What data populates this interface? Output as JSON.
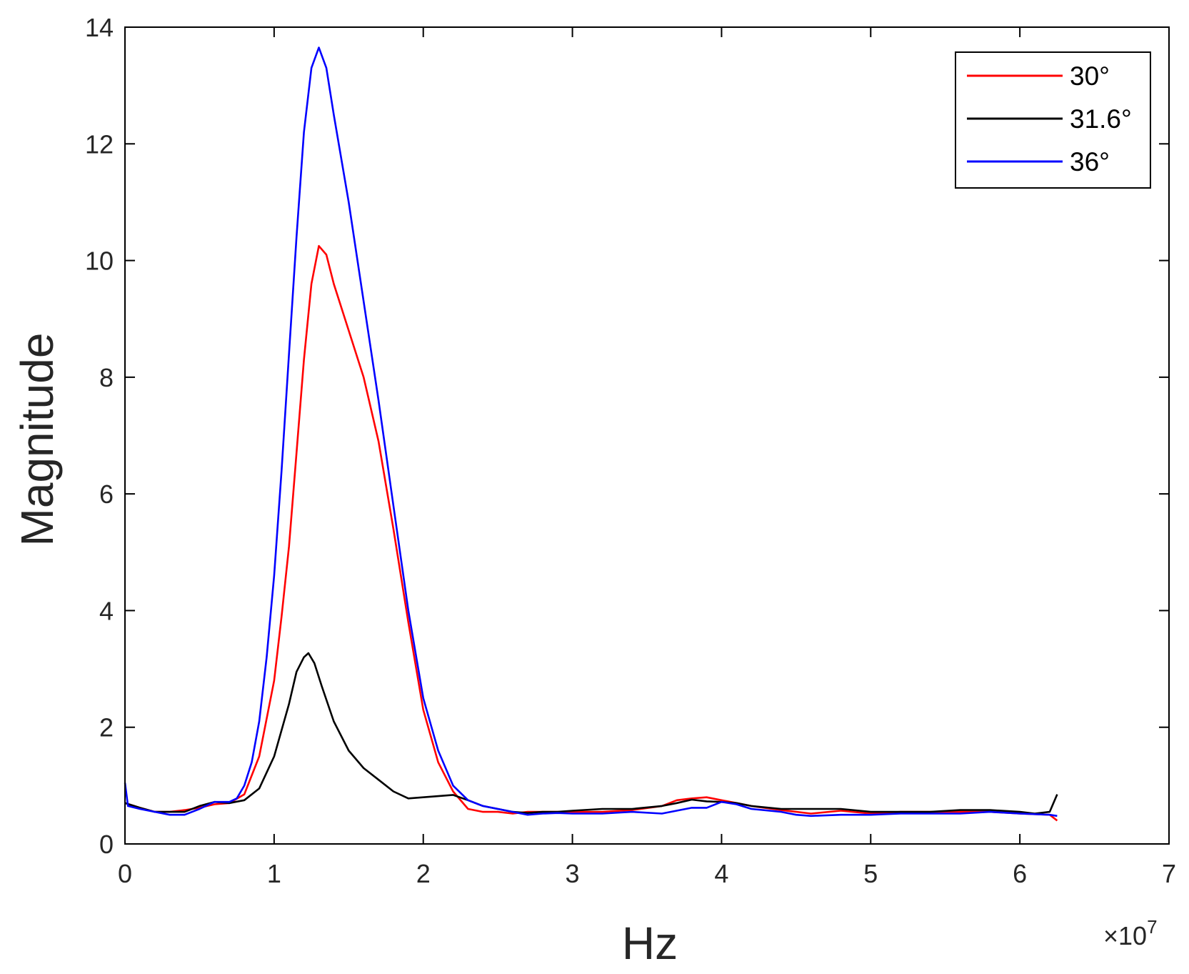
{
  "chart_data": {
    "type": "line",
    "xlabel": "Hz",
    "ylabel": "Magnitude",
    "x_exponent_label": "×10",
    "x_exponent_power": "7",
    "xlim": [
      0,
      7
    ],
    "ylim": [
      0,
      14
    ],
    "x_ticks": [
      "0",
      "1",
      "2",
      "3",
      "4",
      "5",
      "6",
      "7"
    ],
    "y_ticks": [
      "0",
      "2",
      "4",
      "6",
      "8",
      "10",
      "12",
      "14"
    ],
    "grid": false,
    "legend_position": "top-right",
    "colors": {
      "axis": "#262626",
      "box": "#000000"
    },
    "series": [
      {
        "name": "30°",
        "color": "#ff0000",
        "points": [
          [
            0,
            0.7
          ],
          [
            0.1,
            0.62
          ],
          [
            0.2,
            0.55
          ],
          [
            0.3,
            0.55
          ],
          [
            0.4,
            0.58
          ],
          [
            0.5,
            0.62
          ],
          [
            0.6,
            0.68
          ],
          [
            0.7,
            0.7
          ],
          [
            0.8,
            0.85
          ],
          [
            0.9,
            1.5
          ],
          [
            1.0,
            2.8
          ],
          [
            1.05,
            3.9
          ],
          [
            1.1,
            5.1
          ],
          [
            1.15,
            6.7
          ],
          [
            1.2,
            8.3
          ],
          [
            1.25,
            9.6
          ],
          [
            1.3,
            10.25
          ],
          [
            1.35,
            10.1
          ],
          [
            1.4,
            9.6
          ],
          [
            1.5,
            8.8
          ],
          [
            1.6,
            8.0
          ],
          [
            1.7,
            6.9
          ],
          [
            1.8,
            5.4
          ],
          [
            1.9,
            3.8
          ],
          [
            2.0,
            2.3
          ],
          [
            2.1,
            1.4
          ],
          [
            2.2,
            0.9
          ],
          [
            2.3,
            0.6
          ],
          [
            2.4,
            0.55
          ],
          [
            2.5,
            0.55
          ],
          [
            2.6,
            0.52
          ],
          [
            2.7,
            0.55
          ],
          [
            2.8,
            0.55
          ],
          [
            2.9,
            0.55
          ],
          [
            3.0,
            0.55
          ],
          [
            3.2,
            0.55
          ],
          [
            3.4,
            0.58
          ],
          [
            3.6,
            0.65
          ],
          [
            3.7,
            0.75
          ],
          [
            3.8,
            0.78
          ],
          [
            3.9,
            0.8
          ],
          [
            4.0,
            0.75
          ],
          [
            4.1,
            0.7
          ],
          [
            4.2,
            0.65
          ],
          [
            4.4,
            0.58
          ],
          [
            4.6,
            0.52
          ],
          [
            4.8,
            0.57
          ],
          [
            5.0,
            0.52
          ],
          [
            5.2,
            0.55
          ],
          [
            5.4,
            0.55
          ],
          [
            5.6,
            0.55
          ],
          [
            5.8,
            0.55
          ],
          [
            6.0,
            0.52
          ],
          [
            6.2,
            0.5
          ],
          [
            6.25,
            0.4
          ]
        ]
      },
      {
        "name": "31.6°",
        "color": "#000000",
        "points": [
          [
            0,
            0.7
          ],
          [
            0.1,
            0.62
          ],
          [
            0.2,
            0.55
          ],
          [
            0.3,
            0.55
          ],
          [
            0.4,
            0.55
          ],
          [
            0.5,
            0.65
          ],
          [
            0.6,
            0.72
          ],
          [
            0.7,
            0.7
          ],
          [
            0.8,
            0.75
          ],
          [
            0.9,
            0.95
          ],
          [
            1.0,
            1.5
          ],
          [
            1.1,
            2.4
          ],
          [
            1.15,
            2.95
          ],
          [
            1.2,
            3.2
          ],
          [
            1.23,
            3.27
          ],
          [
            1.27,
            3.1
          ],
          [
            1.32,
            2.7
          ],
          [
            1.4,
            2.1
          ],
          [
            1.5,
            1.6
          ],
          [
            1.6,
            1.3
          ],
          [
            1.7,
            1.1
          ],
          [
            1.8,
            0.9
          ],
          [
            1.9,
            0.78
          ],
          [
            2.0,
            0.8
          ],
          [
            2.1,
            0.82
          ],
          [
            2.2,
            0.84
          ],
          [
            2.3,
            0.75
          ],
          [
            2.4,
            0.65
          ],
          [
            2.5,
            0.6
          ],
          [
            2.6,
            0.55
          ],
          [
            2.7,
            0.53
          ],
          [
            2.8,
            0.55
          ],
          [
            2.9,
            0.55
          ],
          [
            3.0,
            0.57
          ],
          [
            3.2,
            0.6
          ],
          [
            3.4,
            0.6
          ],
          [
            3.6,
            0.65
          ],
          [
            3.7,
            0.7
          ],
          [
            3.8,
            0.76
          ],
          [
            3.9,
            0.73
          ],
          [
            4.0,
            0.72
          ],
          [
            4.1,
            0.7
          ],
          [
            4.2,
            0.65
          ],
          [
            4.4,
            0.6
          ],
          [
            4.6,
            0.6
          ],
          [
            4.8,
            0.6
          ],
          [
            5.0,
            0.55
          ],
          [
            5.2,
            0.55
          ],
          [
            5.4,
            0.55
          ],
          [
            5.6,
            0.58
          ],
          [
            5.8,
            0.58
          ],
          [
            6.0,
            0.55
          ],
          [
            6.1,
            0.52
          ],
          [
            6.2,
            0.55
          ],
          [
            6.25,
            0.85
          ]
        ]
      },
      {
        "name": "36°",
        "color": "#0000ff",
        "points": [
          [
            0,
            1.05
          ],
          [
            0.02,
            0.65
          ],
          [
            0.1,
            0.6
          ],
          [
            0.2,
            0.55
          ],
          [
            0.3,
            0.5
          ],
          [
            0.4,
            0.5
          ],
          [
            0.5,
            0.6
          ],
          [
            0.6,
            0.72
          ],
          [
            0.7,
            0.72
          ],
          [
            0.75,
            0.78
          ],
          [
            0.8,
            1.0
          ],
          [
            0.85,
            1.4
          ],
          [
            0.9,
            2.1
          ],
          [
            0.95,
            3.2
          ],
          [
            1.0,
            4.6
          ],
          [
            1.05,
            6.4
          ],
          [
            1.1,
            8.4
          ],
          [
            1.15,
            10.4
          ],
          [
            1.2,
            12.2
          ],
          [
            1.25,
            13.3
          ],
          [
            1.3,
            13.65
          ],
          [
            1.35,
            13.3
          ],
          [
            1.4,
            12.5
          ],
          [
            1.5,
            11.0
          ],
          [
            1.6,
            9.3
          ],
          [
            1.7,
            7.6
          ],
          [
            1.8,
            5.8
          ],
          [
            1.9,
            4.0
          ],
          [
            2.0,
            2.5
          ],
          [
            2.1,
            1.6
          ],
          [
            2.2,
            1.0
          ],
          [
            2.3,
            0.75
          ],
          [
            2.4,
            0.65
          ],
          [
            2.5,
            0.6
          ],
          [
            2.6,
            0.55
          ],
          [
            2.7,
            0.5
          ],
          [
            2.8,
            0.52
          ],
          [
            2.9,
            0.53
          ],
          [
            3.0,
            0.52
          ],
          [
            3.2,
            0.52
          ],
          [
            3.4,
            0.55
          ],
          [
            3.6,
            0.52
          ],
          [
            3.8,
            0.62
          ],
          [
            3.9,
            0.62
          ],
          [
            4.0,
            0.72
          ],
          [
            4.1,
            0.68
          ],
          [
            4.2,
            0.6
          ],
          [
            4.4,
            0.55
          ],
          [
            4.5,
            0.5
          ],
          [
            4.6,
            0.48
          ],
          [
            4.8,
            0.5
          ],
          [
            5.0,
            0.5
          ],
          [
            5.2,
            0.52
          ],
          [
            5.4,
            0.52
          ],
          [
            5.6,
            0.52
          ],
          [
            5.8,
            0.55
          ],
          [
            6.0,
            0.52
          ],
          [
            6.2,
            0.5
          ],
          [
            6.25,
            0.48
          ]
        ]
      }
    ]
  }
}
